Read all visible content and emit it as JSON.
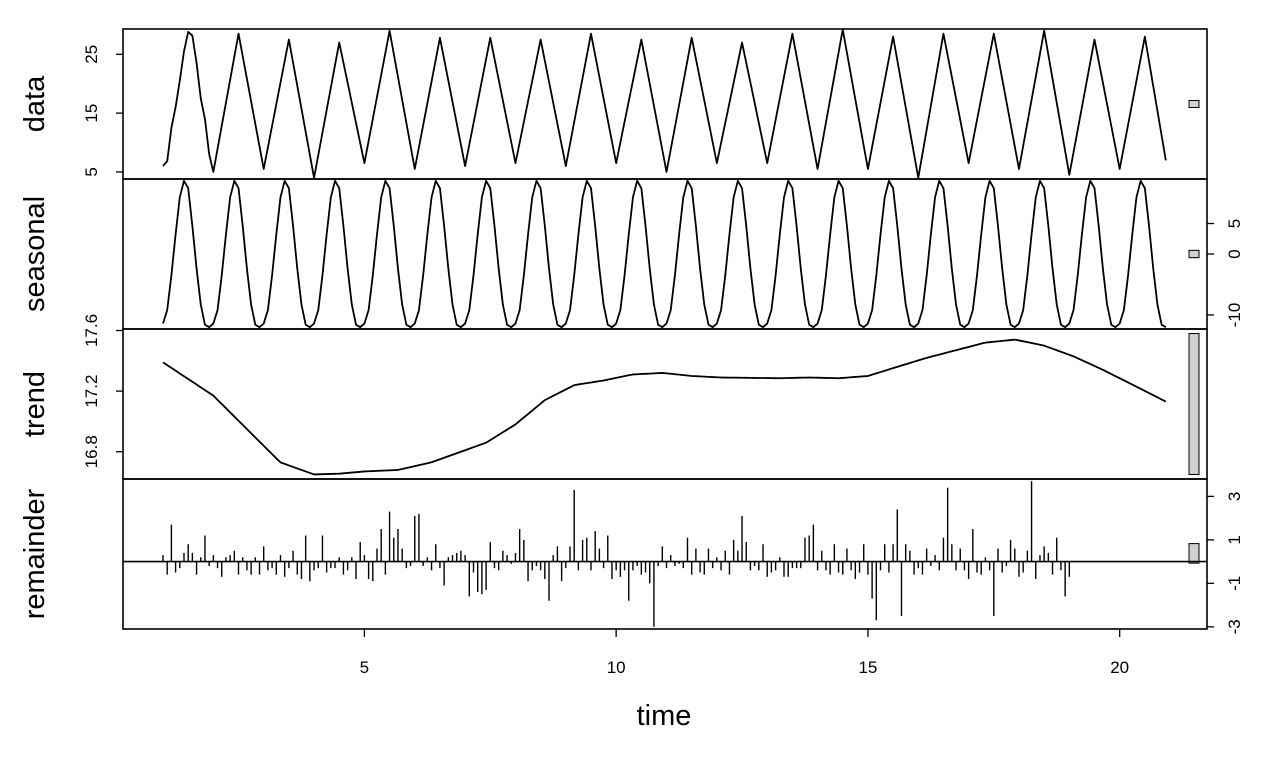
{
  "chart_data": {
    "type": "line",
    "method": "STL decomposition",
    "xlabel": "time",
    "x_range": [
      1,
      20.92
    ],
    "frequency": 12,
    "x_ticks": [
      5,
      10,
      15,
      20
    ],
    "panels": [
      {
        "name": "data",
        "label": "data",
        "y_ticks": [
          5,
          15,
          25
        ],
        "y_axis_side": "left",
        "ylim": [
          3.8,
          29.3
        ],
        "range_bar_height": 1.2
      },
      {
        "name": "seasonal",
        "label": "seasonal",
        "y_ticks": [
          -10,
          0,
          5
        ],
        "y_axis_side": "right",
        "ylim": [
          -12.3,
          12.3
        ],
        "pattern": [
          -11.4,
          -9.2,
          -3.5,
          3.2,
          9.3,
          12.0,
          10.8,
          4.6,
          -2.4,
          -8.3,
          -11.6,
          -12.0
        ],
        "range_bar_height": 1.2
      },
      {
        "name": "trend",
        "label": "trend",
        "y_ticks": [
          16.8,
          17.2,
          17.6
        ],
        "y_axis_side": "left",
        "ylim": [
          16.62,
          17.61
        ],
        "knots": [
          [
            1,
            17.39
          ],
          [
            2,
            17.17
          ],
          [
            3.33,
            16.73
          ],
          [
            4,
            16.65
          ],
          [
            4.5,
            16.655
          ],
          [
            5,
            16.67
          ],
          [
            5.67,
            16.68
          ],
          [
            6.33,
            16.73
          ],
          [
            7.42,
            16.86
          ],
          [
            8,
            16.98
          ],
          [
            8.58,
            17.14
          ],
          [
            9.17,
            17.24
          ],
          [
            9.75,
            17.27
          ],
          [
            10.33,
            17.31
          ],
          [
            10.92,
            17.32
          ],
          [
            11.5,
            17.3
          ],
          [
            12.08,
            17.29
          ],
          [
            13.25,
            17.285
          ],
          [
            13.83,
            17.29
          ],
          [
            14.42,
            17.285
          ],
          [
            15,
            17.3
          ],
          [
            15.58,
            17.36
          ],
          [
            16.17,
            17.42
          ],
          [
            16.75,
            17.47
          ],
          [
            17.33,
            17.52
          ],
          [
            17.92,
            17.54
          ],
          [
            18.5,
            17.5
          ],
          [
            19.08,
            17.43
          ],
          [
            19.67,
            17.34
          ],
          [
            20.33,
            17.23
          ],
          [
            20.92,
            17.13
          ]
        ],
        "range_bar_height": 0.93
      },
      {
        "name": "remainder",
        "label": "remainder",
        "y_ticks": [
          -3,
          -1,
          1,
          3
        ],
        "y_axis_side": "right",
        "ylim": [
          -3.1,
          3.8
        ],
        "range_bar_height": 0.9,
        "bars": [
          0.3,
          -0.6,
          1.7,
          -0.5,
          -0.3,
          0.4,
          0.8,
          0.4,
          -0.6,
          0.2,
          1.2,
          -0.2,
          0.3,
          -0.3,
          -0.7,
          0.2,
          0.3,
          0.5,
          -0.6,
          0.2,
          -0.4,
          -0.6,
          0.2,
          -0.6,
          0.7,
          -0.4,
          -0.3,
          -0.6,
          0.3,
          -0.7,
          -0.3,
          0.5,
          -0.6,
          -0.8,
          1.2,
          -0.9,
          -0.4,
          -0.3,
          1.2,
          -0.5,
          -0.3,
          -0.3,
          0.2,
          -0.6,
          -0.4,
          0.2,
          -0.8,
          0.9,
          0.3,
          -0.8,
          -0.9,
          0.6,
          1.5,
          -0.6,
          2.3,
          1.1,
          1.5,
          0.6,
          -0.3,
          -0.2,
          2.1,
          2.2,
          -0.2,
          0.2,
          -0.4,
          0.8,
          -0.3,
          -1.1,
          0.2,
          0.3,
          0.4,
          0.5,
          0.3,
          -1.6,
          -0.5,
          -1.4,
          -1.5,
          -1.3,
          0.9,
          -0.3,
          -0.4,
          0.5,
          0.3,
          -0.1,
          0.4,
          1.5,
          1.0,
          -0.9,
          -0.4,
          -0.2,
          -0.4,
          -0.8,
          -1.8,
          0.3,
          0.7,
          -0.9,
          -0.3,
          0.7,
          3.3,
          -0.4,
          1.0,
          1.1,
          -0.4,
          1.4,
          0.6,
          -0.3,
          1.2,
          -0.8,
          -0.4,
          -0.7,
          -0.4,
          -1.8,
          -0.4,
          -0.2,
          -0.6,
          -0.5,
          -1.0,
          -3.0,
          -0.2,
          0.7,
          -0.3,
          0.3,
          -0.2,
          -0.1,
          -0.3,
          1.1,
          -0.6,
          0.6,
          -0.5,
          -0.6,
          0.6,
          -0.3,
          0.2,
          -0.4,
          0.5,
          -0.6,
          1.0,
          0.5,
          2.1,
          0.9,
          -0.4,
          -0.2,
          -0.4,
          0.8,
          -0.7,
          -0.5,
          -0.4,
          0.2,
          -0.7,
          -0.7,
          -0.3,
          -0.3,
          -0.3,
          1.1,
          1.2,
          1.7,
          -0.4,
          0.5,
          -0.4,
          -0.6,
          0.8,
          -0.5,
          -0.6,
          0.6,
          -0.4,
          -0.8,
          -0.5,
          0.8,
          -0.6,
          -1.7,
          -2.7,
          -0.4,
          0.8,
          -0.5,
          0.8,
          2.4,
          -2.5,
          0.8,
          0.5,
          -0.6,
          -0.3,
          -0.6,
          0.6,
          -0.2,
          0.3,
          -0.4,
          1.1,
          3.4,
          0.8,
          -0.4,
          0.6,
          -0.4,
          -0.8,
          1.5,
          -0.5,
          -0.6,
          0.2,
          -0.4,
          -2.5,
          0.6,
          -0.5,
          -0.2,
          1.0,
          0.6,
          -0.7,
          -0.5,
          0.5,
          3.7,
          -0.8,
          0.3,
          0.7,
          0.4,
          -0.6,
          1.1,
          -0.4,
          -1.6,
          -0.7
        ]
      }
    ],
    "data_anchors": [
      [
        1,
        6.0
      ],
      [
        1.083,
        6.8
      ],
      [
        1.167,
        12.5
      ],
      [
        1.25,
        16.0
      ],
      [
        1.333,
        20.5
      ],
      [
        1.417,
        25.5
      ],
      [
        1.5,
        28.8
      ],
      [
        1.583,
        28.2
      ],
      [
        1.667,
        23.5
      ],
      [
        1.75,
        17.5
      ],
      [
        1.833,
        14.0
      ],
      [
        1.917,
        8.0
      ],
      [
        2.0,
        5.0
      ],
      [
        2.5,
        28.5
      ],
      [
        3.0,
        5.5
      ],
      [
        3.5,
        27.5
      ],
      [
        4.0,
        4.0
      ],
      [
        4.5,
        27.0
      ],
      [
        5.0,
        6.5
      ],
      [
        5.5,
        29.0
      ],
      [
        6.0,
        5.5
      ],
      [
        6.5,
        27.8
      ],
      [
        7.0,
        6.0
      ],
      [
        7.5,
        27.8
      ],
      [
        8.0,
        6.5
      ],
      [
        8.5,
        27.5
      ],
      [
        9.0,
        6.0
      ],
      [
        9.5,
        28.5
      ],
      [
        10.0,
        6.5
      ],
      [
        10.5,
        27.5
      ],
      [
        11.0,
        5.0
      ],
      [
        11.5,
        27.8
      ],
      [
        12.0,
        6.5
      ],
      [
        12.5,
        27.0
      ],
      [
        13.0,
        6.5
      ],
      [
        13.5,
        28.5
      ],
      [
        14.0,
        5.5
      ],
      [
        14.5,
        29.2
      ],
      [
        15.0,
        5.5
      ],
      [
        15.5,
        28.0
      ],
      [
        16.0,
        4.0
      ],
      [
        16.5,
        28.5
      ],
      [
        17.0,
        6.5
      ],
      [
        17.5,
        28.5
      ],
      [
        18.0,
        5.5
      ],
      [
        18.5,
        29.0
      ],
      [
        19.0,
        4.5
      ],
      [
        19.5,
        27.5
      ],
      [
        20.0,
        5.5
      ],
      [
        20.5,
        28.0
      ],
      [
        20.92,
        6.8
      ]
    ]
  }
}
